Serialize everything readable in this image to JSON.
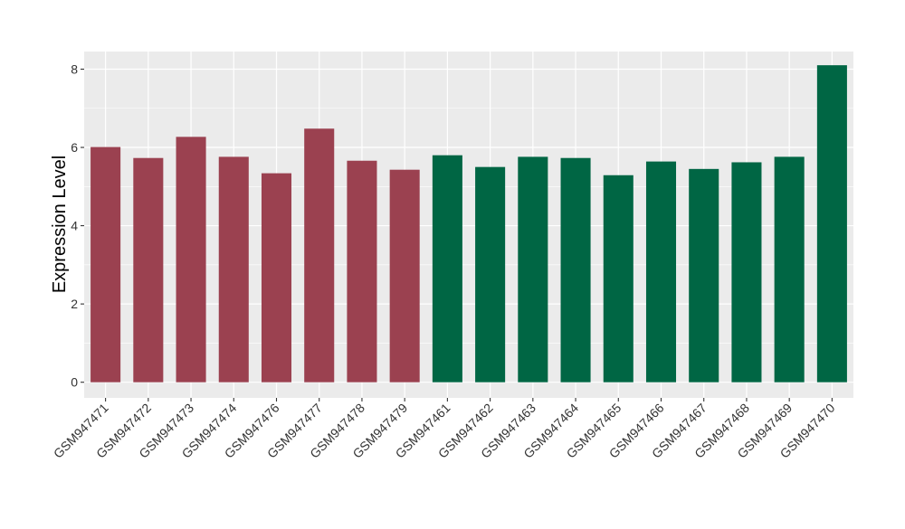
{
  "chart_data": {
    "type": "bar",
    "title": "",
    "xlabel": "",
    "ylabel": "Expression Level",
    "ylim": [
      -0.4,
      8.45
    ],
    "yticks": [
      0,
      2,
      4,
      6,
      8
    ],
    "grid": true,
    "categories": [
      "GSM947471",
      "GSM947472",
      "GSM947473",
      "GSM947474",
      "GSM947476",
      "GSM947477",
      "GSM947478",
      "GSM947479",
      "GSM947461",
      "GSM947462",
      "GSM947463",
      "GSM947464",
      "GSM947465",
      "GSM947466",
      "GSM947467",
      "GSM947468",
      "GSM947469",
      "GSM947470"
    ],
    "values": [
      6.01,
      5.73,
      6.27,
      5.76,
      5.34,
      6.48,
      5.66,
      5.43,
      5.8,
      5.5,
      5.76,
      5.73,
      5.29,
      5.64,
      5.45,
      5.62,
      5.76,
      8.1
    ],
    "groups": [
      0,
      0,
      0,
      0,
      0,
      0,
      0,
      0,
      1,
      1,
      1,
      1,
      1,
      1,
      1,
      1,
      1,
      1
    ],
    "group_colors": [
      "#9b4150",
      "#006644"
    ],
    "panel_background": "#ebebeb"
  }
}
